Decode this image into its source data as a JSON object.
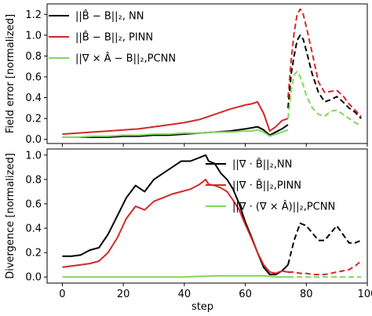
{
  "chart_data": [
    {
      "type": "line",
      "title": "",
      "xlabel": "",
      "ylabel": "Field error [normalized]",
      "xlim": [
        -5,
        100
      ],
      "ylim": [
        -0.04,
        1.3
      ],
      "xticks": [
        0,
        20,
        40,
        60,
        80,
        100
      ],
      "yticks": [
        0.0,
        0.2,
        0.4,
        0.6,
        0.8,
        1.0,
        1.2
      ],
      "ytick_labels": [
        "0.0",
        "0.2",
        "0.4",
        "0.6",
        "0.8",
        "1.0",
        "1.2"
      ],
      "show_xtick_labels": false,
      "grid": false,
      "legend_position": "top-left",
      "series": [
        {
          "name": "||B̂ − B||₂, NN",
          "color": "#000000",
          "x": [
            0,
            5,
            10,
            15,
            20,
            25,
            30,
            35,
            40,
            45,
            50,
            55,
            60,
            62,
            64,
            66,
            68,
            70,
            72,
            74
          ],
          "y": [
            0.02,
            0.02,
            0.02,
            0.02,
            0.03,
            0.03,
            0.04,
            0.04,
            0.05,
            0.06,
            0.07,
            0.08,
            0.1,
            0.11,
            0.12,
            0.09,
            0.04,
            0.07,
            0.1,
            0.14
          ],
          "dashed_x": [
            74,
            75,
            76,
            77,
            78,
            79,
            80,
            82,
            84,
            86,
            88,
            90,
            92,
            94,
            96,
            98
          ],
          "dashed_y": [
            0.3,
            0.62,
            0.8,
            0.95,
            1.0,
            0.96,
            0.85,
            0.62,
            0.45,
            0.36,
            0.38,
            0.41,
            0.36,
            0.3,
            0.26,
            0.2
          ]
        },
        {
          "name": "||B̂ − B||₂, PINN",
          "color": "#d62728",
          "x": [
            0,
            5,
            10,
            15,
            20,
            25,
            30,
            35,
            40,
            45,
            50,
            55,
            60,
            62,
            64,
            66,
            68,
            70,
            72,
            74
          ],
          "y": [
            0.05,
            0.06,
            0.07,
            0.08,
            0.09,
            0.1,
            0.12,
            0.14,
            0.16,
            0.19,
            0.24,
            0.29,
            0.33,
            0.34,
            0.36,
            0.25,
            0.08,
            0.12,
            0.18,
            0.2
          ],
          "dashed_x": [
            74,
            75,
            76,
            77,
            78,
            79,
            80,
            82,
            84,
            86,
            88,
            90,
            92,
            94,
            96,
            98
          ],
          "dashed_y": [
            0.4,
            0.75,
            1.02,
            1.2,
            1.25,
            1.2,
            1.08,
            0.82,
            0.55,
            0.45,
            0.46,
            0.47,
            0.42,
            0.34,
            0.28,
            0.22
          ]
        },
        {
          "name": "||∇ × Â − B||₂,PCNN",
          "color": "#7ed957",
          "x": [
            0,
            5,
            10,
            15,
            20,
            25,
            30,
            35,
            40,
            45,
            50,
            55,
            60,
            62,
            64,
            66,
            68,
            70,
            72,
            74
          ],
          "y": [
            0.02,
            0.02,
            0.03,
            0.03,
            0.04,
            0.04,
            0.05,
            0.05,
            0.06,
            0.06,
            0.07,
            0.07,
            0.08,
            0.08,
            0.09,
            0.07,
            0.03,
            0.05,
            0.07,
            0.09
          ],
          "dashed_x": [
            74,
            75,
            76,
            77,
            78,
            79,
            80,
            82,
            84,
            86,
            88,
            90,
            92,
            94,
            96,
            98
          ],
          "dashed_y": [
            0.2,
            0.46,
            0.62,
            0.65,
            0.6,
            0.52,
            0.42,
            0.3,
            0.24,
            0.22,
            0.27,
            0.28,
            0.24,
            0.2,
            0.16,
            0.13
          ]
        }
      ]
    },
    {
      "type": "line",
      "title": "",
      "xlabel": "step",
      "ylabel": "Divergence [normalized]",
      "xlim": [
        -5,
        100
      ],
      "ylim": [
        -0.05,
        1.05
      ],
      "xticks": [
        0,
        20,
        40,
        60,
        80,
        100
      ],
      "xtick_labels": [
        "0",
        "20",
        "40",
        "60",
        "80",
        "100"
      ],
      "yticks": [
        0.0,
        0.2,
        0.4,
        0.6,
        0.8,
        1.0
      ],
      "ytick_labels": [
        "0.0",
        "0.2",
        "0.4",
        "0.6",
        "0.8",
        "1.0"
      ],
      "show_xtick_labels": true,
      "grid": false,
      "legend_position": "top-right",
      "series": [
        {
          "name": "||∇ · B̂||₂,NN",
          "color": "#000000",
          "x": [
            0,
            3,
            6,
            9,
            12,
            15,
            18,
            21,
            24,
            27,
            30,
            33,
            36,
            39,
            42,
            45,
            47,
            48,
            50,
            52,
            54,
            56,
            58,
            60,
            62,
            64,
            66,
            68,
            70,
            72,
            74
          ],
          "y": [
            0.17,
            0.17,
            0.18,
            0.22,
            0.24,
            0.35,
            0.5,
            0.65,
            0.75,
            0.7,
            0.8,
            0.85,
            0.9,
            0.95,
            0.95,
            0.98,
            1.0,
            0.95,
            0.93,
            0.85,
            0.8,
            0.72,
            0.6,
            0.45,
            0.33,
            0.2,
            0.08,
            0.02,
            0.02,
            0.05,
            0.1
          ],
          "dashed_x": [
            74,
            76,
            78,
            80,
            82,
            84,
            86,
            88,
            90,
            92,
            94,
            96,
            98
          ],
          "dashed_y": [
            0.1,
            0.3,
            0.44,
            0.42,
            0.36,
            0.3,
            0.3,
            0.36,
            0.42,
            0.35,
            0.28,
            0.28,
            0.3
          ]
        },
        {
          "name": "||∇ · B̂||₂,PINN",
          "color": "#d62728",
          "x": [
            0,
            3,
            6,
            9,
            12,
            15,
            18,
            21,
            24,
            27,
            30,
            33,
            36,
            39,
            42,
            45,
            47,
            48,
            50,
            52,
            54,
            56,
            58,
            60,
            62,
            64,
            66,
            68,
            70,
            72,
            74
          ],
          "y": [
            0.08,
            0.09,
            0.1,
            0.11,
            0.13,
            0.2,
            0.32,
            0.48,
            0.58,
            0.55,
            0.62,
            0.65,
            0.68,
            0.7,
            0.72,
            0.76,
            0.8,
            0.76,
            0.75,
            0.73,
            0.7,
            0.63,
            0.55,
            0.43,
            0.32,
            0.2,
            0.1,
            0.04,
            0.03,
            0.05,
            0.04
          ],
          "dashed_x": [
            74,
            76,
            78,
            80,
            82,
            84,
            86,
            88,
            90,
            92,
            94,
            96,
            98
          ],
          "dashed_y": [
            0.04,
            0.04,
            0.03,
            0.03,
            0.02,
            0.02,
            0.02,
            0.03,
            0.04,
            0.05,
            0.06,
            0.09,
            0.13
          ]
        },
        {
          "name": "||∇ · (∇ × Â)||₂,PCNN",
          "color": "#7ed957",
          "x": [
            0,
            10,
            20,
            30,
            40,
            50,
            60,
            66,
            70,
            74
          ],
          "y": [
            0.0,
            0.0,
            0.0,
            0.0,
            0.0,
            0.01,
            0.01,
            0.01,
            0.0,
            0.0
          ],
          "dashed_x": [
            74,
            80,
            86,
            92,
            98
          ],
          "dashed_y": [
            0.0,
            0.0,
            0.0,
            0.0,
            0.0
          ]
        }
      ]
    }
  ]
}
